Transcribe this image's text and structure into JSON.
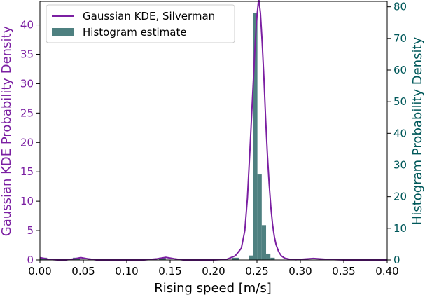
{
  "chart_data": {
    "type": "bar",
    "xlabel": "Rising speed [m/s]",
    "ylabel_left": "Gaussian KDE Probability Density",
    "ylabel_right": "Histogram Probability Density",
    "xlim": [
      0.0,
      0.4
    ],
    "ylim_left": [
      0,
      44
    ],
    "ylim_right": [
      0,
      81.7
    ],
    "x_ticks": [
      "0.00",
      "0.05",
      "0.10",
      "0.15",
      "0.20",
      "0.25",
      "0.30",
      "0.35",
      "0.40"
    ],
    "y_left_ticks": [
      "0",
      "5",
      "10",
      "15",
      "20",
      "25",
      "30",
      "35",
      "40"
    ],
    "y_right_ticks": [
      "0",
      "10",
      "20",
      "30",
      "40",
      "50",
      "60",
      "70",
      "80"
    ],
    "grid": false,
    "legend_position": "top-left",
    "colors": {
      "kde": "#7b1fa2",
      "hist": "#4e8080",
      "left_axis": "#7b1fa2",
      "right_axis": "#00585a"
    },
    "series": [
      {
        "name": "Gaussian KDE, Silverman",
        "kind": "line",
        "axis": "left",
        "x": [
          0.0,
          0.01,
          0.02,
          0.03,
          0.04,
          0.047,
          0.055,
          0.065,
          0.08,
          0.1,
          0.12,
          0.135,
          0.145,
          0.155,
          0.165,
          0.18,
          0.2,
          0.215,
          0.225,
          0.232,
          0.236,
          0.239,
          0.242,
          0.245,
          0.248,
          0.25,
          0.252,
          0.254,
          0.256,
          0.258,
          0.26,
          0.262,
          0.264,
          0.266,
          0.268,
          0.27,
          0.272,
          0.275,
          0.278,
          0.282,
          0.288,
          0.295,
          0.305,
          0.315,
          0.33,
          0.35,
          0.37,
          0.39,
          0.4
        ],
        "y": [
          0.4,
          0.1,
          0.0,
          0.0,
          0.2,
          0.4,
          0.2,
          0.0,
          0.0,
          0.0,
          0.0,
          0.2,
          0.45,
          0.2,
          0.0,
          0.0,
          0.0,
          0.1,
          0.7,
          2.0,
          5.0,
          10.5,
          19.0,
          28.0,
          37.0,
          41.5,
          44.5,
          42.0,
          37.0,
          31.0,
          24.0,
          18.0,
          13.0,
          9.0,
          6.0,
          4.0,
          2.6,
          1.4,
          0.7,
          0.3,
          0.1,
          0.05,
          0.15,
          0.25,
          0.1,
          0.0,
          0.0,
          0.0,
          0.0
        ]
      },
      {
        "name": "Histogram estimate",
        "kind": "bar",
        "axis": "right",
        "bin_edges": [
          0.0,
          0.008,
          0.038,
          0.046,
          0.137,
          0.145,
          0.221,
          0.229,
          0.2405,
          0.2455,
          0.2505,
          0.2555,
          0.2605,
          0.2655,
          0.2705
        ],
        "values": [
          0.7,
          0.0,
          0.7,
          0.0,
          0.7,
          0.0,
          0.7,
          0.0,
          1.4,
          78.0,
          27.0,
          11.0,
          2.0,
          0.7
        ]
      }
    ]
  }
}
